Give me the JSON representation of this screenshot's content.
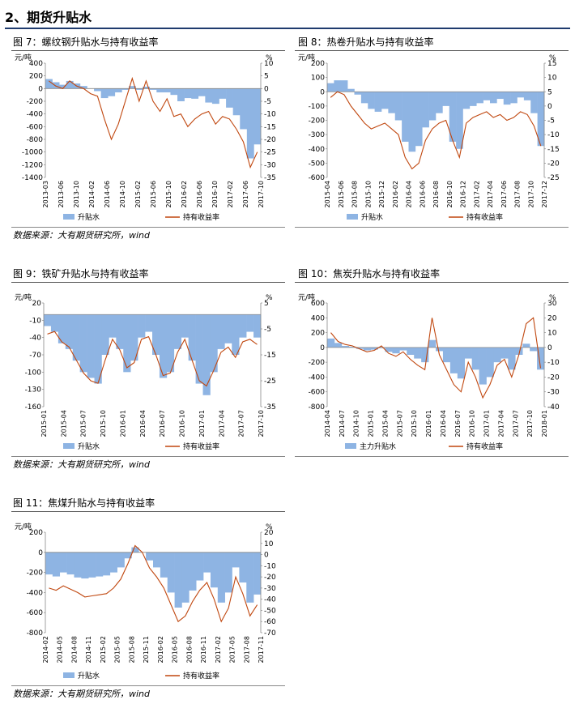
{
  "section_title": "2、期货升贴水",
  "figures": [
    {
      "title": "图 7：螺纹钢升贴水与持有收益率",
      "source": "数据来源：大有期货研究所，wind"
    },
    {
      "title": "图 8：热卷升贴水与持有收益率",
      "source": ""
    },
    {
      "title": "图 9：铁矿升贴水与持有收益率",
      "source": "数据来源：大有期货研究所，wind"
    },
    {
      "title": "图 10：焦炭升贴水与持有收益率",
      "source": ""
    },
    {
      "title": "图 11：焦煤升贴水与持有收益率",
      "source": "数据来源：大有期货研究所，wind"
    }
  ],
  "colors": {
    "basis": "#8eb4e3",
    "yield": "#c0470f"
  },
  "chart_data": [
    {
      "type": "area",
      "left_unit": "元/吨",
      "right_unit": "%",
      "left_ticks": [
        "400",
        "200",
        "0",
        "-200",
        "-400",
        "-600",
        "-800",
        "-1000",
        "-1200",
        "-1400"
      ],
      "right_ticks": [
        "10",
        "5",
        "0",
        "-5",
        "-10",
        "-15",
        "-20",
        "-25",
        "-30",
        "-35"
      ],
      "ylim_left": [
        -1400,
        400
      ],
      "ylim_right": [
        -35,
        10
      ],
      "x_ticks": [
        "2013-03",
        "2013-06",
        "2013-10",
        "2014-02",
        "2014-06",
        "2014-10",
        "2015-02",
        "2015-06",
        "2015-10",
        "2016-02",
        "2016-06",
        "2016-10",
        "2017-02",
        "2017-06",
        "2017-10"
      ],
      "series": [
        {
          "name": "升贴水",
          "axis": "left",
          "values": [
            150,
            100,
            60,
            120,
            80,
            40,
            0,
            -40,
            -150,
            -120,
            -60,
            -20,
            40,
            -20,
            30,
            -20,
            -60,
            -60,
            -100,
            -200,
            -150,
            -160,
            -120,
            -220,
            -240,
            -160,
            -300,
            -420,
            -640,
            -1100,
            -880
          ]
        },
        {
          "name": "持有收益率",
          "axis": "right",
          "values": [
            3,
            1,
            0,
            3,
            1,
            0,
            -2,
            -3,
            -12,
            -20,
            -14,
            -5,
            4,
            -5,
            3,
            -5,
            -9,
            -4,
            -11,
            -10,
            -15,
            -12,
            -10,
            -9,
            -14,
            -11,
            -12,
            -16,
            -21,
            -31,
            -25
          ]
        }
      ]
    },
    {
      "type": "area",
      "left_unit": "元/吨",
      "right_unit": "%",
      "left_ticks": [
        "200",
        "100",
        "0",
        "-100",
        "-200",
        "-300",
        "-400",
        "-500",
        "-600"
      ],
      "right_ticks": [
        "15",
        "10",
        "5",
        "0",
        "-5",
        "-10",
        "-15",
        "-20",
        "-25"
      ],
      "ylim_left": [
        -600,
        200
      ],
      "ylim_right": [
        -25,
        15
      ],
      "x_ticks": [
        "2015-04",
        "2015-06",
        "2015-08",
        "2015-10",
        "2015-12",
        "2016-02",
        "2016-04",
        "2016-06",
        "2016-08",
        "2016-10",
        "2016-12",
        "2017-02",
        "2017-04",
        "2017-06",
        "2017-08",
        "2017-10",
        "2017-12"
      ],
      "series": [
        {
          "name": "升贴水",
          "axis": "left",
          "values": [
            60,
            80,
            80,
            20,
            -20,
            -80,
            -120,
            -140,
            -120,
            -150,
            -200,
            -350,
            -420,
            -380,
            -250,
            -200,
            -150,
            -100,
            -350,
            -400,
            -120,
            -100,
            -80,
            -60,
            -80,
            -50,
            -90,
            -80,
            -40,
            -60,
            -150,
            -380
          ]
        },
        {
          "name": "持有收益率",
          "axis": "right",
          "values": [
            3,
            5,
            4,
            0,
            -3,
            -6,
            -8,
            -7,
            -6,
            -8,
            -10,
            -18,
            -22,
            -20,
            -12,
            -8,
            -6,
            -5,
            -12,
            -18,
            -6,
            -4,
            -3,
            -2,
            -4,
            -3,
            -5,
            -4,
            -2,
            -3,
            -7,
            -14
          ]
        }
      ]
    },
    {
      "type": "area",
      "left_unit": "元/吨",
      "right_unit": "%",
      "left_ticks": [
        "20",
        "-10",
        "-40",
        "-70",
        "-100",
        "-130",
        "-160"
      ],
      "right_ticks": [
        "5",
        "-5",
        "-15",
        "-25",
        "-35"
      ],
      "ylim_left": [
        -160,
        20
      ],
      "ylim_right": [
        -35,
        5
      ],
      "x_ticks": [
        "2015-01",
        "2015-04",
        "2015-07",
        "2015-10",
        "2016-01",
        "2016-04",
        "2016-07",
        "2016-10",
        "2017-01",
        "2017-04",
        "2017-07",
        "2017-10"
      ],
      "series": [
        {
          "name": "升贴水",
          "axis": "left",
          "values": [
            -20,
            -30,
            -50,
            -60,
            -80,
            -100,
            -110,
            -120,
            -70,
            -40,
            -60,
            -100,
            -80,
            -40,
            -30,
            -70,
            -110,
            -100,
            -60,
            -40,
            -80,
            -120,
            -140,
            -100,
            -60,
            -50,
            -70,
            -40,
            -30,
            -40
          ]
        },
        {
          "name": "持有收益率",
          "axis": "right",
          "values": [
            -7,
            -6,
            -10,
            -12,
            -17,
            -22,
            -25,
            -26,
            -17,
            -9,
            -13,
            -20,
            -18,
            -9,
            -8,
            -15,
            -23,
            -22,
            -14,
            -9,
            -17,
            -25,
            -27,
            -21,
            -14,
            -12,
            -16,
            -10,
            -9,
            -11
          ]
        }
      ]
    },
    {
      "type": "area",
      "left_unit": "元/吨",
      "right_unit": "%",
      "left_ticks": [
        "600",
        "400",
        "200",
        "0",
        "-200",
        "-400",
        "-600",
        "-800"
      ],
      "right_ticks": [
        "30",
        "20",
        "10",
        "0",
        "-10",
        "-20",
        "-30",
        "-40"
      ],
      "ylim_left": [
        -800,
        600
      ],
      "ylim_right": [
        -40,
        30
      ],
      "x_ticks": [
        "2014-04",
        "2014-07",
        "2014-10",
        "2015-01",
        "2015-04",
        "2015-07",
        "2015-10",
        "2016-01",
        "2016-04",
        "2016-07",
        "2016-10",
        "2017-01",
        "2017-04",
        "2017-07",
        "2017-10",
        "2018-01"
      ],
      "series": [
        {
          "name": "主力升贴水",
          "axis": "left",
          "values": [
            120,
            60,
            20,
            10,
            -20,
            -40,
            -30,
            -10,
            -60,
            -80,
            -40,
            -100,
            -150,
            -200,
            100,
            -50,
            -200,
            -350,
            -420,
            -150,
            -300,
            -500,
            -400,
            -200,
            -150,
            -300,
            -100,
            50,
            -50,
            -300
          ]
        },
        {
          "name": "持有收益率",
          "axis": "right",
          "values": [
            10,
            4,
            2,
            1,
            -1,
            -3,
            -2,
            1,
            -4,
            -6,
            -3,
            -8,
            -12,
            -15,
            20,
            -5,
            -15,
            -25,
            -30,
            -10,
            -20,
            -34,
            -25,
            -12,
            -8,
            -20,
            -5,
            16,
            20,
            -14
          ]
        }
      ]
    },
    {
      "type": "area",
      "left_unit": "元/吨",
      "right_unit": "%",
      "left_ticks": [
        "200",
        "0",
        "-200",
        "-400",
        "-600",
        "-800"
      ],
      "right_ticks": [
        "20",
        "10",
        "0",
        "-10",
        "-20",
        "-30",
        "-40",
        "-50",
        "-60",
        "-70"
      ],
      "ylim_left": [
        -800,
        200
      ],
      "ylim_right": [
        -70,
        20
      ],
      "x_ticks": [
        "2014-02",
        "2014-05",
        "2014-08",
        "2014-11",
        "2015-02",
        "2015-05",
        "2015-08",
        "2015-11",
        "2016-02",
        "2016-05",
        "2016-08",
        "2016-11",
        "2017-02",
        "2017-05",
        "2017-08",
        "2017-11"
      ],
      "series": [
        {
          "name": "升贴水",
          "axis": "left",
          "values": [
            -220,
            -240,
            -200,
            -220,
            -250,
            -260,
            -250,
            -240,
            -230,
            -200,
            -150,
            -60,
            50,
            0,
            -80,
            -150,
            -250,
            -400,
            -550,
            -500,
            -380,
            -280,
            -200,
            -350,
            -500,
            -400,
            -150,
            -300,
            -500,
            -420
          ]
        },
        {
          "name": "持有收益率",
          "axis": "right",
          "values": [
            -30,
            -32,
            -28,
            -31,
            -34,
            -38,
            -37,
            -36,
            -35,
            -30,
            -22,
            -8,
            8,
            2,
            -12,
            -20,
            -30,
            -45,
            -60,
            -55,
            -42,
            -32,
            -25,
            -40,
            -60,
            -48,
            -20,
            -35,
            -55,
            -45
          ]
        }
      ]
    }
  ]
}
